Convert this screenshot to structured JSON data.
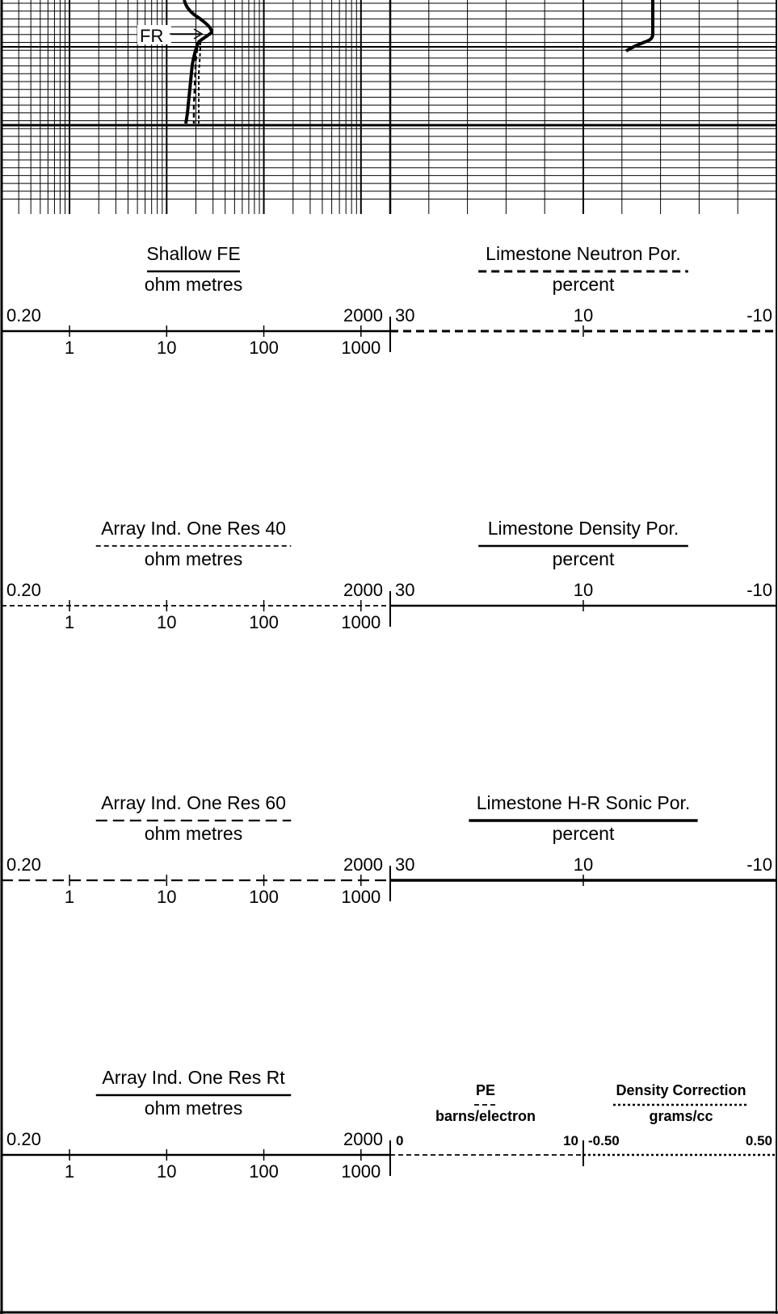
{
  "trace_label": "FR",
  "scales": [
    {
      "left": {
        "title": "Shallow FE",
        "unit": "ohm metres",
        "min": "0.20",
        "max": "2000",
        "line_style": "solid",
        "decades": [
          "1",
          "10",
          "100",
          "1000"
        ]
      },
      "right": {
        "title": "Limestone Neutron Por.",
        "unit": "percent",
        "min": "30",
        "mid": "10",
        "max": "-10",
        "line_style": "dashed-heavy"
      }
    },
    {
      "left": {
        "title": "Array Ind. One Res 40",
        "unit": "ohm metres",
        "min": "0.20",
        "max": "2000",
        "line_style": "dashed-fine",
        "decades": [
          "1",
          "10",
          "100",
          "1000"
        ]
      },
      "right": {
        "title": "Limestone Density Por.",
        "unit": "percent",
        "min": "30",
        "mid": "10",
        "max": "-10",
        "line_style": "solid"
      }
    },
    {
      "left": {
        "title": "Array Ind. One Res 60",
        "unit": "ohm metres",
        "min": "0.20",
        "max": "2000",
        "line_style": "dashed-long",
        "decades": [
          "1",
          "10",
          "100",
          "1000"
        ]
      },
      "right": {
        "title": "Limestone H-R Sonic Por.",
        "unit": "percent",
        "min": "30",
        "mid": "10",
        "max": "-10",
        "line_style": "solid-heavy"
      }
    },
    {
      "left": {
        "title": "Array Ind. One Res Rt",
        "unit": "ohm metres",
        "min": "0.20",
        "max": "2000",
        "line_style": "solid",
        "decades": [
          "1",
          "10",
          "100",
          "1000"
        ]
      },
      "right_a": {
        "title": "PE",
        "unit": "barns/electron",
        "min": "0",
        "max": "10",
        "line_style": "dashed-fine"
      },
      "right_b": {
        "title": "Density Correction",
        "unit": "grams/cc",
        "min": "-0.50",
        "max": "0.50",
        "line_style": "dotted"
      }
    }
  ]
}
